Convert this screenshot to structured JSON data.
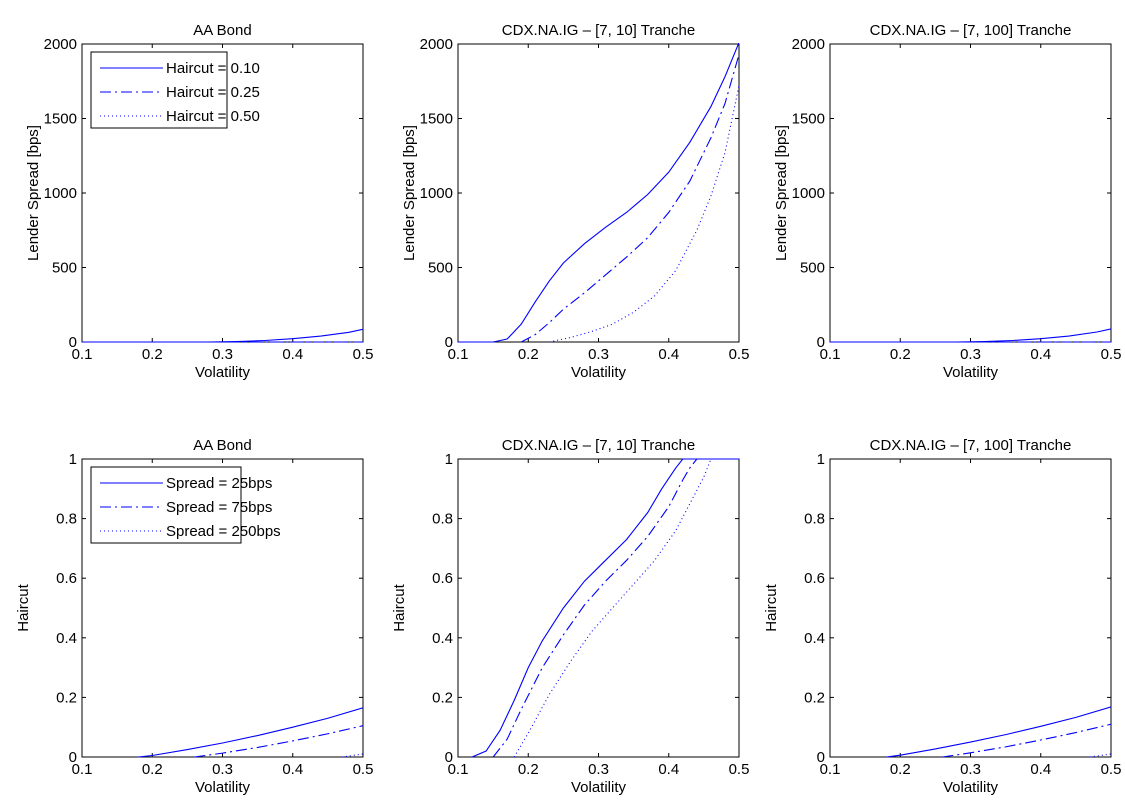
{
  "figure": {
    "line_color": "#0000ff",
    "panels_layout": "2 rows x 3 columns"
  },
  "chart_data": [
    {
      "type": "line",
      "title": "AA Bond",
      "xlabel": "Volatility",
      "ylabel": "Lender Spread [bps]",
      "xlim": [
        0.1,
        0.5
      ],
      "ylim": [
        0,
        2000
      ],
      "xticks": [
        "0.1",
        "0.2",
        "0.3",
        "0.4",
        "0.5"
      ],
      "yticks": [
        "0",
        "500",
        "1000",
        "1500",
        "2000"
      ],
      "legend": {
        "placement": "top-left",
        "entries": [
          "Haircut = 0.10",
          "Haircut = 0.25",
          "Haircut = 0.50"
        ]
      },
      "series": [
        {
          "name": "Haircut = 0.10",
          "style": "solid",
          "x": [
            0.1,
            0.2,
            0.28,
            0.32,
            0.36,
            0.4,
            0.44,
            0.48,
            0.5
          ],
          "y": [
            0,
            0,
            0,
            3,
            10,
            22,
            40,
            65,
            85
          ]
        },
        {
          "name": "Haircut = 0.25",
          "style": "dashdot",
          "x": [
            0.1,
            0.3,
            0.4,
            0.45,
            0.5
          ],
          "y": [
            0,
            0,
            0,
            0,
            0
          ]
        },
        {
          "name": "Haircut = 0.50",
          "style": "dotted",
          "x": [
            0.1,
            0.3,
            0.4,
            0.45,
            0.5
          ],
          "y": [
            0,
            0,
            0,
            0,
            0
          ]
        }
      ]
    },
    {
      "type": "line",
      "title": "CDX.NA.IG – [7, 10] Tranche",
      "xlabel": "Volatility",
      "ylabel": "Lender Spread [bps]",
      "xlim": [
        0.1,
        0.5
      ],
      "ylim": [
        0,
        2000
      ],
      "xticks": [
        "0.1",
        "0.2",
        "0.3",
        "0.4",
        "0.5"
      ],
      "yticks": [
        "0",
        "500",
        "1000",
        "1500",
        "2000"
      ],
      "legend": null,
      "series": [
        {
          "name": "Haircut = 0.10",
          "style": "solid",
          "x": [
            0.1,
            0.15,
            0.17,
            0.19,
            0.21,
            0.23,
            0.25,
            0.28,
            0.31,
            0.34,
            0.37,
            0.4,
            0.43,
            0.46,
            0.48,
            0.5
          ],
          "y": [
            0,
            0,
            20,
            120,
            270,
            410,
            530,
            660,
            770,
            870,
            990,
            1140,
            1340,
            1580,
            1780,
            2010
          ]
        },
        {
          "name": "Haircut = 0.25",
          "style": "dashdot",
          "x": [
            0.19,
            0.21,
            0.23,
            0.25,
            0.28,
            0.31,
            0.34,
            0.37,
            0.4,
            0.43,
            0.46,
            0.48,
            0.5
          ],
          "y": [
            0,
            50,
            130,
            220,
            330,
            450,
            570,
            700,
            870,
            1080,
            1370,
            1600,
            1930
          ]
        },
        {
          "name": "Haircut = 0.50",
          "style": "dotted",
          "x": [
            0.23,
            0.26,
            0.29,
            0.32,
            0.35,
            0.38,
            0.41,
            0.44,
            0.46,
            0.48,
            0.5
          ],
          "y": [
            0,
            30,
            70,
            120,
            200,
            310,
            480,
            750,
            980,
            1270,
            1720
          ]
        }
      ]
    },
    {
      "type": "line",
      "title": "CDX.NA.IG – [7, 100] Tranche",
      "xlabel": "Volatility",
      "ylabel": "Lender Spread [bps]",
      "xlim": [
        0.1,
        0.5
      ],
      "ylim": [
        0,
        2000
      ],
      "xticks": [
        "0.1",
        "0.2",
        "0.3",
        "0.4",
        "0.5"
      ],
      "yticks": [
        "0",
        "500",
        "1000",
        "1500",
        "2000"
      ],
      "legend": null,
      "series": [
        {
          "name": "Haircut = 0.10",
          "style": "solid",
          "x": [
            0.1,
            0.2,
            0.28,
            0.32,
            0.36,
            0.4,
            0.44,
            0.48,
            0.5
          ],
          "y": [
            0,
            0,
            0,
            3,
            10,
            22,
            40,
            67,
            88
          ]
        },
        {
          "name": "Haircut = 0.25",
          "style": "dashdot",
          "x": [
            0.1,
            0.3,
            0.4,
            0.45,
            0.5
          ],
          "y": [
            0,
            0,
            0,
            0,
            0
          ]
        },
        {
          "name": "Haircut = 0.50",
          "style": "dotted",
          "x": [
            0.1,
            0.3,
            0.4,
            0.45,
            0.5
          ],
          "y": [
            0,
            0,
            0,
            0,
            0
          ]
        }
      ]
    },
    {
      "type": "line",
      "title": "AA Bond",
      "xlabel": "Volatility",
      "ylabel": "Haircut",
      "xlim": [
        0.1,
        0.5
      ],
      "ylim": [
        0,
        1
      ],
      "xticks": [
        "0.1",
        "0.2",
        "0.3",
        "0.4",
        "0.5"
      ],
      "yticks": [
        "0",
        "0.2",
        "0.4",
        "0.6",
        "0.8",
        "1"
      ],
      "legend": {
        "placement": "top-left",
        "entries": [
          "Spread = 25bps",
          "Spread = 75bps",
          "Spread = 250bps"
        ]
      },
      "series": [
        {
          "name": "Spread = 25bps",
          "style": "solid",
          "x": [
            0.18,
            0.2,
            0.25,
            0.3,
            0.35,
            0.4,
            0.45,
            0.5
          ],
          "y": [
            0,
            0.005,
            0.025,
            0.047,
            0.072,
            0.1,
            0.13,
            0.165
          ]
        },
        {
          "name": "Spread = 75bps",
          "style": "dashdot",
          "x": [
            0.26,
            0.3,
            0.35,
            0.4,
            0.45,
            0.5
          ],
          "y": [
            0,
            0.013,
            0.032,
            0.054,
            0.078,
            0.105
          ]
        },
        {
          "name": "Spread = 250bps",
          "style": "dotted",
          "x": [
            0.47,
            0.5
          ],
          "y": [
            0,
            0.01
          ]
        }
      ]
    },
    {
      "type": "line",
      "title": "CDX.NA.IG – [7, 10] Tranche",
      "xlabel": "Volatility",
      "ylabel": "Haircut",
      "xlim": [
        0.1,
        0.5
      ],
      "ylim": [
        0,
        1
      ],
      "xticks": [
        "0.1",
        "0.2",
        "0.3",
        "0.4",
        "0.5"
      ],
      "yticks": [
        "0",
        "0.2",
        "0.4",
        "0.6",
        "0.8",
        "1"
      ],
      "legend": null,
      "series": [
        {
          "name": "Spread = 25bps",
          "style": "solid",
          "x": [
            0.12,
            0.14,
            0.16,
            0.18,
            0.2,
            0.22,
            0.25,
            0.28,
            0.31,
            0.34,
            0.37,
            0.39,
            0.41,
            0.42,
            0.5
          ],
          "y": [
            0,
            0.02,
            0.09,
            0.19,
            0.3,
            0.39,
            0.5,
            0.59,
            0.66,
            0.73,
            0.82,
            0.9,
            0.97,
            1,
            1
          ]
        },
        {
          "name": "Spread = 75bps",
          "style": "dashdot",
          "x": [
            0.15,
            0.17,
            0.19,
            0.22,
            0.25,
            0.28,
            0.31,
            0.34,
            0.37,
            0.4,
            0.42,
            0.43,
            0.44
          ],
          "y": [
            0,
            0.06,
            0.16,
            0.3,
            0.41,
            0.51,
            0.59,
            0.66,
            0.74,
            0.84,
            0.93,
            0.97,
            1
          ]
        },
        {
          "name": "Spread = 250bps",
          "style": "dotted",
          "x": [
            0.18,
            0.2,
            0.23,
            0.26,
            0.29,
            0.32,
            0.35,
            0.38,
            0.41,
            0.43,
            0.45,
            0.46,
            0.5
          ],
          "y": [
            0,
            0.08,
            0.21,
            0.32,
            0.42,
            0.5,
            0.58,
            0.66,
            0.76,
            0.85,
            0.94,
            1,
            1
          ]
        }
      ]
    },
    {
      "type": "line",
      "title": "CDX.NA.IG – [7, 100] Tranche",
      "xlabel": "Volatility",
      "ylabel": "Haircut",
      "xlim": [
        0.1,
        0.5
      ],
      "ylim": [
        0,
        1
      ],
      "xticks": [
        "0.1",
        "0.2",
        "0.3",
        "0.4",
        "0.5"
      ],
      "yticks": [
        "0",
        "0.2",
        "0.4",
        "0.6",
        "0.8",
        "1"
      ],
      "legend": null,
      "series": [
        {
          "name": "Spread = 25bps",
          "style": "solid",
          "x": [
            0.18,
            0.2,
            0.25,
            0.3,
            0.35,
            0.4,
            0.45,
            0.5
          ],
          "y": [
            0,
            0.006,
            0.027,
            0.05,
            0.075,
            0.103,
            0.133,
            0.168
          ]
        },
        {
          "name": "Spread = 75bps",
          "style": "dashdot",
          "x": [
            0.26,
            0.3,
            0.35,
            0.4,
            0.45,
            0.5
          ],
          "y": [
            0,
            0.014,
            0.034,
            0.057,
            0.082,
            0.11
          ]
        },
        {
          "name": "Spread = 250bps",
          "style": "dotted",
          "x": [
            0.47,
            0.5
          ],
          "y": [
            0,
            0.01
          ]
        }
      ]
    }
  ]
}
